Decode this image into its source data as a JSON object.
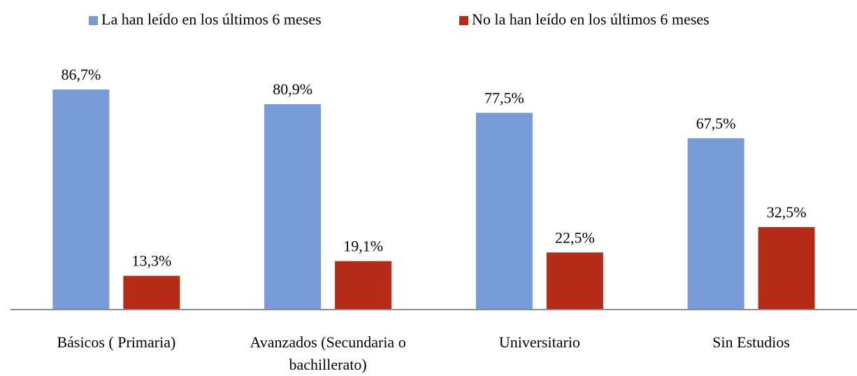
{
  "chart_data": {
    "type": "bar",
    "categories": [
      "Básicos ( Primaria)",
      "Avanzados (Secundaria o bachillerato)",
      "Universitario",
      "Sin Estudios"
    ],
    "series": [
      {
        "name": "La han leído en los últimos 6 meses",
        "color": "#779bd9",
        "values": [
          86.7,
          80.9,
          77.5,
          67.5
        ],
        "value_labels": [
          "86,7%",
          "80,9%",
          "77,5%",
          "67,5%"
        ]
      },
      {
        "name": "No la han leído en los últimos 6 meses",
        "color": "#b52b17",
        "values": [
          13.3,
          19.1,
          22.5,
          32.5
        ],
        "value_labels": [
          "13,3%",
          "19,1%",
          "22,5%",
          "32,5%"
        ]
      }
    ],
    "legend": "top"
  }
}
